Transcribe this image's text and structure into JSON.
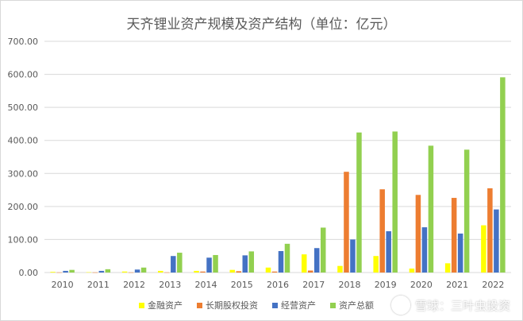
{
  "chart_data": {
    "type": "bar",
    "title": "天齐锂业资产规模及资产结构（单位：亿元）",
    "categories": [
      "2010",
      "2011",
      "2012",
      "2013",
      "2014",
      "2015",
      "2016",
      "2017",
      "2018",
      "2019",
      "2020",
      "2021",
      "2022"
    ],
    "ylim": [
      0,
      700
    ],
    "yticks": [
      "0.00",
      "100.00",
      "200.00",
      "300.00",
      "400.00",
      "500.00",
      "600.00",
      "700.00"
    ],
    "grid": true,
    "legend_position": "bottom",
    "series": [
      {
        "name": "金融资产",
        "color": "#ffff00",
        "values": [
          2,
          1,
          3,
          5,
          5,
          8,
          15,
          55,
          20,
          50,
          12,
          28,
          143
        ]
      },
      {
        "name": "长期股权投资",
        "color": "#ed7d31",
        "values": [
          0.5,
          0.5,
          0.5,
          0.5,
          3,
          4,
          3,
          6,
          305,
          252,
          235,
          226,
          255
        ]
      },
      {
        "name": "经营资产",
        "color": "#4472c4",
        "values": [
          5,
          5,
          9,
          50,
          45,
          52,
          65,
          74,
          100,
          125,
          137,
          118,
          191
        ]
      },
      {
        "name": "资产总额",
        "color": "#92d050",
        "values": [
          8,
          10,
          15,
          60,
          53,
          64,
          87,
          136,
          424,
          427,
          384,
          372,
          591
        ]
      }
    ]
  },
  "legend_labels": [
    "金融资产",
    "长期股权投资",
    "经营资产",
    "资产总额"
  ],
  "watermark": "雪球：三叶虫投资"
}
